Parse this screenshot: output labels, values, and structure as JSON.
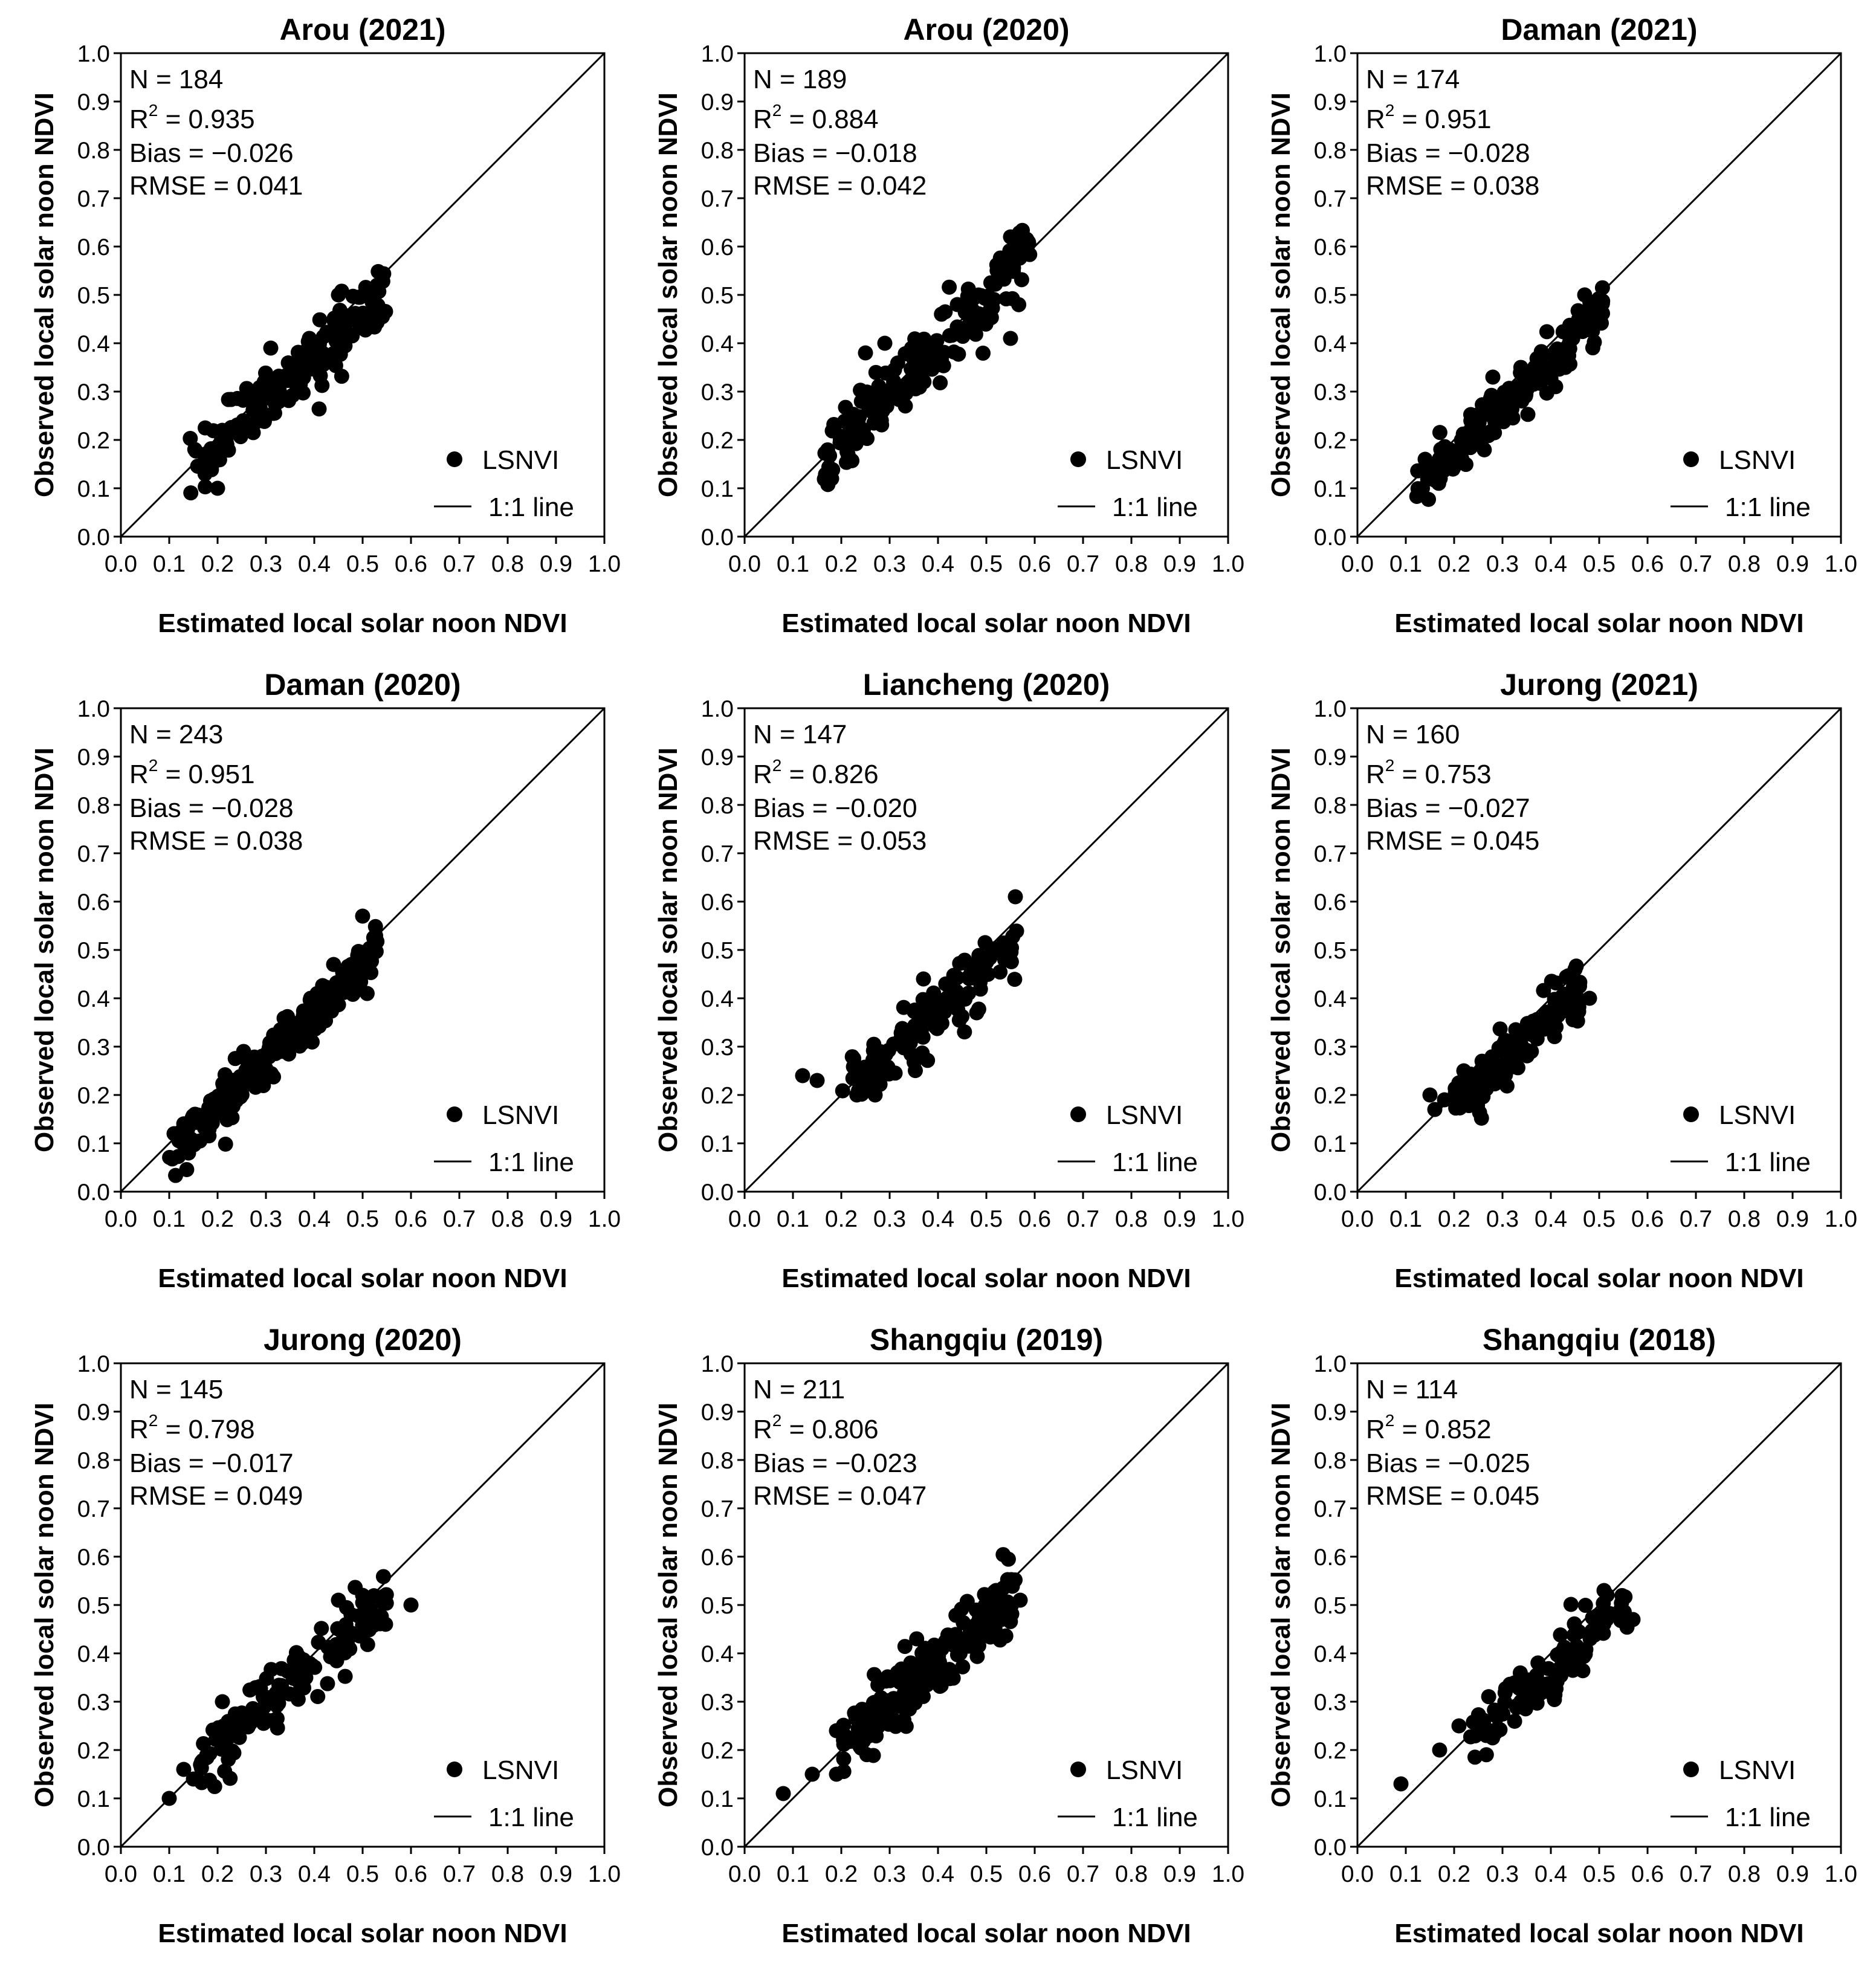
{
  "chart_data": [
    {
      "type": "scatter",
      "title": "Arou (2021)",
      "xlabel": "Estimated local solar noon NDVI",
      "ylabel": "Observed local solar noon NDVI",
      "xlim": [
        0,
        1
      ],
      "ylim": [
        0,
        1
      ],
      "ticks": [
        "0.0",
        "0.1",
        "0.2",
        "0.3",
        "0.4",
        "0.5",
        "0.6",
        "0.7",
        "0.8",
        "0.9",
        "1.0"
      ],
      "stats": {
        "n": "N = 184",
        "r2_label": "R",
        "r2_sup": "2",
        "r2_value": " = 0.935",
        "bias": "Bias = −0.026",
        "rmse": "RMSE = 0.041"
      },
      "legend": {
        "points": "LSNVI",
        "line": "1:1 line"
      },
      "cloud": {
        "n": 184,
        "x_range": [
          0.14,
          0.55
        ],
        "slope": 0.93,
        "intercept": -0.004,
        "noise": 0.03,
        "seed": 11
      },
      "extra_points": [
        [
          0.46,
          0.42
        ],
        [
          0.31,
          0.39
        ],
        [
          0.45,
          0.5
        ],
        [
          0.2,
          0.1
        ],
        [
          0.53,
          0.52
        ]
      ]
    },
    {
      "type": "scatter",
      "title": "Arou (2020)",
      "xlabel": "Estimated local solar noon NDVI",
      "ylabel": "Observed local solar noon NDVI",
      "xlim": [
        0,
        1
      ],
      "ylim": [
        0,
        1
      ],
      "ticks": [
        "0.0",
        "0.1",
        "0.2",
        "0.3",
        "0.4",
        "0.5",
        "0.6",
        "0.7",
        "0.8",
        "0.9",
        "1.0"
      ],
      "stats": {
        "n": "N = 189",
        "r2_label": "R",
        "r2_sup": "2",
        "r2_value": " = 0.884",
        "bias": "Bias = −0.018",
        "rmse": "RMSE = 0.042"
      },
      "legend": {
        "points": "LSNVI",
        "line": "1:1 line"
      },
      "cloud": {
        "n": 189,
        "x_range": [
          0.16,
          0.59
        ],
        "slope": 0.97,
        "intercept": 0.004,
        "noise": 0.035,
        "seed": 23
      },
      "extra_points": [
        [
          0.55,
          0.62
        ],
        [
          0.55,
          0.41
        ],
        [
          0.25,
          0.38
        ],
        [
          0.29,
          0.4
        ],
        [
          0.18,
          0.12
        ],
        [
          0.44,
          0.48
        ]
      ]
    },
    {
      "type": "scatter",
      "title": "Daman (2021)",
      "xlabel": "Estimated local solar noon NDVI",
      "ylabel": "Observed local solar noon NDVI",
      "xlim": [
        0,
        1
      ],
      "ylim": [
        0,
        1
      ],
      "ticks": [
        "0.0",
        "0.1",
        "0.2",
        "0.3",
        "0.4",
        "0.5",
        "0.6",
        "0.7",
        "0.8",
        "0.9",
        "1.0"
      ],
      "stats": {
        "n": "N = 174",
        "r2_label": "R",
        "r2_sup": "2",
        "r2_value": " = 0.951",
        "bias": "Bias = −0.028",
        "rmse": "RMSE = 0.038"
      },
      "legend": {
        "points": "LSNVI",
        "line": "1:1 line"
      },
      "cloud": {
        "n": 174,
        "x_range": [
          0.12,
          0.51
        ],
        "slope": 0.97,
        "intercept": -0.02,
        "noise": 0.025,
        "seed": 37
      },
      "extra_points": [
        [
          0.28,
          0.33
        ],
        [
          0.43,
          0.35
        ],
        [
          0.47,
          0.5
        ],
        [
          0.14,
          0.16
        ]
      ]
    },
    {
      "type": "scatter",
      "title": "Daman (2020)",
      "xlabel": "Estimated local solar noon NDVI",
      "ylabel": "Observed local solar noon NDVI",
      "xlim": [
        0,
        1
      ],
      "ylim": [
        0,
        1
      ],
      "ticks": [
        "0.0",
        "0.1",
        "0.2",
        "0.3",
        "0.4",
        "0.5",
        "0.6",
        "0.7",
        "0.8",
        "0.9",
        "1.0"
      ],
      "stats": {
        "n": "N = 243",
        "r2_label": "R",
        "r2_sup": "2",
        "r2_value": " = 0.951",
        "bias": "Bias = −0.028",
        "rmse": "RMSE = 0.038"
      },
      "legend": {
        "points": "LSNVI",
        "line": "1:1 line"
      },
      "cloud": {
        "n": 243,
        "x_range": [
          0.1,
          0.53
        ],
        "slope": 0.97,
        "intercept": -0.02,
        "noise": 0.025,
        "seed": 41
      },
      "extra_points": [
        [
          0.5,
          0.57
        ],
        [
          0.44,
          0.47
        ],
        [
          0.11,
          0.12
        ],
        [
          0.14,
          0.08
        ]
      ]
    },
    {
      "type": "scatter",
      "title": "Liancheng (2020)",
      "xlabel": "Estimated local solar noon NDVI",
      "ylabel": "Observed local solar noon NDVI",
      "xlim": [
        0,
        1
      ],
      "ylim": [
        0,
        1
      ],
      "ticks": [
        "0.0",
        "0.1",
        "0.2",
        "0.3",
        "0.4",
        "0.5",
        "0.6",
        "0.7",
        "0.8",
        "0.9",
        "1.0"
      ],
      "stats": {
        "n": "N = 147",
        "r2_label": "R",
        "r2_sup": "2",
        "r2_value": " = 0.826",
        "bias": "Bias = −0.020",
        "rmse": "RMSE = 0.053"
      },
      "legend": {
        "points": "LSNVI",
        "line": "1:1 line"
      },
      "cloud": {
        "n": 147,
        "x_range": [
          0.2,
          0.57
        ],
        "slope": 0.85,
        "intercept": 0.03,
        "noise": 0.03,
        "seed": 53
      },
      "extra_points": [
        [
          0.12,
          0.24
        ],
        [
          0.15,
          0.23
        ],
        [
          0.56,
          0.61
        ],
        [
          0.48,
          0.37
        ],
        [
          0.37,
          0.44
        ],
        [
          0.27,
          0.2
        ]
      ]
    },
    {
      "type": "scatter",
      "title": "Jurong (2021)",
      "xlabel": "Estimated local solar noon NDVI",
      "ylabel": "Observed local solar noon NDVI",
      "xlim": [
        0,
        1
      ],
      "ylim": [
        0,
        1
      ],
      "ticks": [
        "0.0",
        "0.1",
        "0.2",
        "0.3",
        "0.4",
        "0.5",
        "0.6",
        "0.7",
        "0.8",
        "0.9",
        "1.0"
      ],
      "stats": {
        "n": "N = 160",
        "r2_label": "R",
        "r2_sup": "2",
        "r2_value": " = 0.753",
        "bias": "Bias = −0.027",
        "rmse": "RMSE = 0.045"
      },
      "legend": {
        "points": "LSNVI",
        "line": "1:1 line"
      },
      "cloud": {
        "n": 160,
        "x_range": [
          0.2,
          0.46
        ],
        "slope": 0.87,
        "intercept": 0.01,
        "noise": 0.028,
        "seed": 67
      },
      "extra_points": [
        [
          0.15,
          0.2
        ],
        [
          0.16,
          0.17
        ],
        [
          0.18,
          0.19
        ],
        [
          0.45,
          0.46
        ],
        [
          0.48,
          0.4
        ],
        [
          0.22,
          0.25
        ]
      ]
    },
    {
      "type": "scatter",
      "title": "Jurong (2020)",
      "xlabel": "Estimated local solar noon NDVI",
      "ylabel": "Observed local solar noon NDVI",
      "xlim": [
        0,
        1
      ],
      "ylim": [
        0,
        1
      ],
      "ticks": [
        "0.0",
        "0.1",
        "0.2",
        "0.3",
        "0.4",
        "0.5",
        "0.6",
        "0.7",
        "0.8",
        "0.9",
        "1.0"
      ],
      "stats": {
        "n": "N = 145",
        "r2_label": "R",
        "r2_sup": "2",
        "r2_value": " = 0.798",
        "bias": "Bias = −0.017",
        "rmse": "RMSE = 0.049"
      },
      "legend": {
        "points": "LSNVI",
        "line": "1:1 line"
      },
      "cloud": {
        "n": 145,
        "x_range": [
          0.16,
          0.55
        ],
        "slope": 0.84,
        "intercept": 0.04,
        "noise": 0.035,
        "seed": 79
      },
      "extra_points": [
        [
          0.1,
          0.1
        ],
        [
          0.13,
          0.16
        ],
        [
          0.15,
          0.14
        ],
        [
          0.6,
          0.5
        ],
        [
          0.45,
          0.51
        ],
        [
          0.5,
          0.52
        ],
        [
          0.21,
          0.3
        ]
      ]
    },
    {
      "type": "scatter",
      "title": "Shangqiu (2019)",
      "xlabel": "Estimated local solar noon NDVI",
      "ylabel": "Observed local solar noon NDVI",
      "xlim": [
        0,
        1
      ],
      "ylim": [
        0,
        1
      ],
      "ticks": [
        "0.0",
        "0.1",
        "0.2",
        "0.3",
        "0.4",
        "0.5",
        "0.6",
        "0.7",
        "0.8",
        "0.9",
        "1.0"
      ],
      "stats": {
        "n": "N = 211",
        "r2_label": "R",
        "r2_sup": "2",
        "r2_value": " = 0.806",
        "bias": "Bias = −0.023",
        "rmse": "RMSE = 0.047"
      },
      "legend": {
        "points": "LSNVI",
        "line": "1:1 line"
      },
      "cloud": {
        "n": 211,
        "x_range": [
          0.2,
          0.56
        ],
        "slope": 0.9,
        "intercept": 0.02,
        "noise": 0.035,
        "seed": 97
      },
      "extra_points": [
        [
          0.08,
          0.11
        ],
        [
          0.14,
          0.15
        ],
        [
          0.19,
          0.15
        ],
        [
          0.19,
          0.24
        ],
        [
          0.52,
          0.53
        ],
        [
          0.57,
          0.51
        ]
      ]
    },
    {
      "type": "scatter",
      "title": "Shangqiu (2018)",
      "xlabel": "Estimated local solar noon NDVI",
      "ylabel": "Observed local solar noon NDVI",
      "xlim": [
        0,
        1
      ],
      "ylim": [
        0,
        1
      ],
      "ticks": [
        "0.0",
        "0.1",
        "0.2",
        "0.3",
        "0.4",
        "0.5",
        "0.6",
        "0.7",
        "0.8",
        "0.9",
        "1.0"
      ],
      "stats": {
        "n": "N = 114",
        "r2_label": "R",
        "r2_sup": "2",
        "r2_value": " = 0.852",
        "bias": "Bias = −0.025",
        "rmse": "RMSE = 0.045"
      },
      "legend": {
        "points": "LSNVI",
        "line": "1:1 line"
      },
      "cloud": {
        "n": 114,
        "x_range": [
          0.22,
          0.56
        ],
        "slope": 0.87,
        "intercept": 0.02,
        "noise": 0.03,
        "seed": 101
      },
      "extra_points": [
        [
          0.09,
          0.13
        ],
        [
          0.17,
          0.2
        ],
        [
          0.21,
          0.25
        ],
        [
          0.51,
          0.53
        ],
        [
          0.57,
          0.47
        ]
      ]
    }
  ]
}
